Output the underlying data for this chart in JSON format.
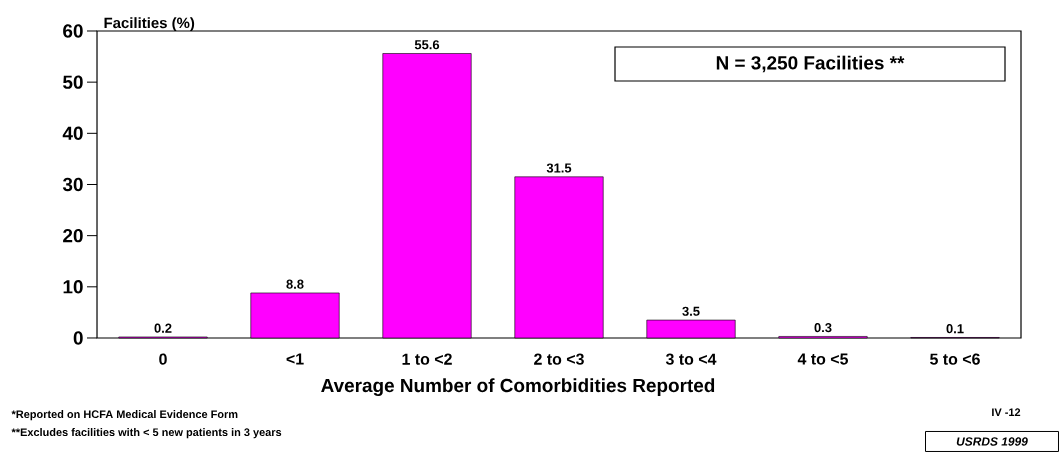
{
  "chart_data": {
    "type": "bar",
    "xlabel": "Average Number of Comorbidities Reported",
    "ylabel": "Facilities (%)",
    "categories": [
      "0",
      "<1",
      "1 to <2",
      "2 to <3",
      "3 to <4",
      "4 to <5",
      "5 to <6"
    ],
    "values": [
      0.2,
      8.8,
      55.6,
      31.5,
      3.5,
      0.3,
      0.1
    ],
    "color": "#ff00ff",
    "ylim": [
      0,
      60
    ],
    "yticks": [
      0,
      10,
      20,
      30,
      40,
      50,
      60
    ],
    "data_labels": true,
    "grid": false,
    "annotations": [
      "N = 3,250 Facilities **",
      "*Reported on HCFA Medical Evidence Form",
      "**Excludes facilities with < 5 new patients in 3 years",
      "IV -12",
      "USRDS 1999"
    ]
  }
}
